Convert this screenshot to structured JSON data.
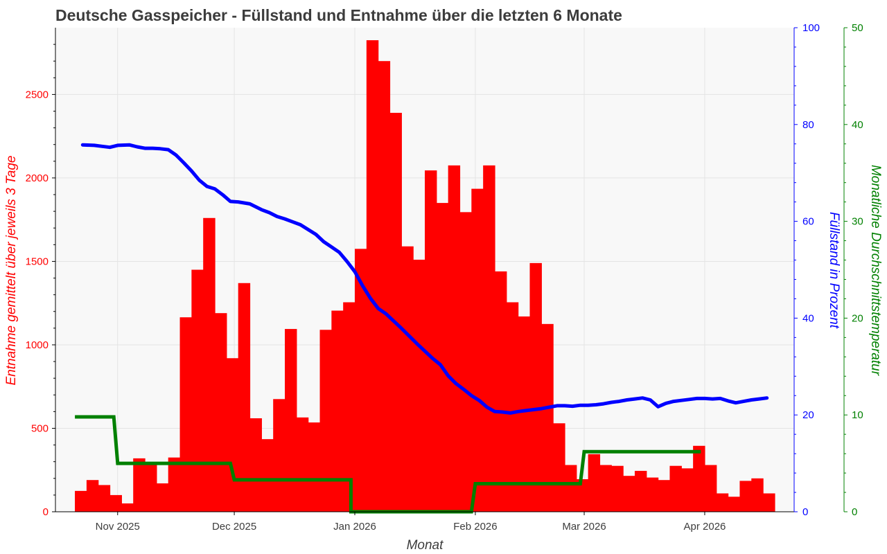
{
  "chart_data": {
    "type": "bar",
    "title": "Deutsche Gasspeicher - Füllstand und Entnahme über die letzten 6 Monate",
    "xlabel": "Monat",
    "x_ticks": [
      "Nov 2025",
      "Dec 2025",
      "Jan 2026",
      "Feb 2026",
      "Mar 2026",
      "Apr 2026"
    ],
    "grid": true,
    "legend": "none",
    "colors": {
      "withdrawal": "#ff0000",
      "fill_level": "#0000ff",
      "temperature": "#008000",
      "title": "#3c3c3c",
      "plot_background": "#f8f8f8",
      "grid": "#e4e4e4"
    },
    "axes": {
      "left": {
        "label": "Entnahme gemittelt über jeweils 3 Tage",
        "ylim": [
          0,
          2900
        ],
        "ticks": [
          0,
          500,
          1000,
          1500,
          2000,
          2500
        ]
      },
      "right1": {
        "label": "Füllstand in Prozent",
        "ylim": [
          0,
          100
        ],
        "ticks": [
          0,
          20,
          40,
          60,
          80,
          100
        ]
      },
      "right2": {
        "label": "Monatliche Durchschnittstemperatur",
        "ylim": [
          0,
          50
        ],
        "ticks": [
          0,
          10,
          20,
          30,
          40,
          50
        ]
      }
    },
    "series": [
      {
        "key": "withdrawal",
        "type": "bar",
        "axis": "left",
        "x_start": [
          "2025-10-21",
          "2025-10-24",
          "2025-10-27",
          "2025-10-30",
          "2025-11-02",
          "2025-11-05",
          "2025-11-08",
          "2025-11-11",
          "2025-11-14",
          "2025-11-17",
          "2025-11-20",
          "2025-11-23",
          "2025-11-26",
          "2025-11-29",
          "2025-12-02",
          "2025-12-05",
          "2025-12-08",
          "2025-12-11",
          "2025-12-14",
          "2025-12-17",
          "2025-12-20",
          "2025-12-23",
          "2025-12-26",
          "2025-12-29",
          "2026-01-01",
          "2026-01-04",
          "2026-01-07",
          "2026-01-10",
          "2026-01-13",
          "2026-01-16",
          "2026-01-19",
          "2026-01-22",
          "2026-01-25",
          "2026-01-28",
          "2026-01-31",
          "2026-02-03",
          "2026-02-06",
          "2026-02-09",
          "2026-02-12",
          "2026-02-15",
          "2026-02-18",
          "2026-02-21",
          "2026-02-24",
          "2026-02-27",
          "2026-03-02",
          "2026-03-05",
          "2026-03-08",
          "2026-03-11",
          "2026-03-14",
          "2026-03-17",
          "2026-03-20",
          "2026-03-23",
          "2026-03-26",
          "2026-03-29",
          "2026-04-01",
          "2026-04-04",
          "2026-04-07",
          "2026-04-10",
          "2026-04-13",
          "2026-04-16"
        ],
        "values": [
          125,
          190,
          160,
          100,
          50,
          320,
          290,
          170,
          325,
          1165,
          1450,
          1760,
          1190,
          920,
          1370,
          560,
          435,
          675,
          1095,
          565,
          535,
          1090,
          1205,
          1255,
          1575,
          2825,
          2700,
          2390,
          1590,
          1510,
          2045,
          1850,
          2075,
          1795,
          1935,
          2075,
          1440,
          1255,
          1170,
          1490,
          1125,
          530,
          280,
          195,
          345,
          280,
          275,
          215,
          245,
          205,
          190,
          275,
          260,
          395,
          280,
          110,
          90,
          185,
          200,
          110
        ]
      },
      {
        "key": "fill_level",
        "type": "line",
        "axis": "right1",
        "x": [
          "2025-10-23",
          "2025-10-26",
          "2025-10-28",
          "2025-10-30",
          "2025-11-01",
          "2025-11-04",
          "2025-11-06",
          "2025-11-08",
          "2025-11-10",
          "2025-11-12",
          "2025-11-14",
          "2025-11-16",
          "2025-11-18",
          "2025-11-20",
          "2025-11-22",
          "2025-11-24",
          "2025-11-26",
          "2025-11-28",
          "2025-11-30",
          "2025-12-02",
          "2025-12-05",
          "2025-12-08",
          "2025-12-10",
          "2025-12-12",
          "2025-12-14",
          "2025-12-16",
          "2025-12-18",
          "2025-12-20",
          "2025-12-22",
          "2025-12-24",
          "2025-12-26",
          "2025-12-28",
          "2025-12-30",
          "2026-01-01",
          "2026-01-03",
          "2026-01-05",
          "2026-01-07",
          "2026-01-09",
          "2026-01-11",
          "2026-01-13",
          "2026-01-15",
          "2026-01-17",
          "2026-01-19",
          "2026-01-21",
          "2026-01-23",
          "2026-01-25",
          "2026-01-27",
          "2026-01-29",
          "2026-01-31",
          "2026-02-02",
          "2026-02-04",
          "2026-02-06",
          "2026-02-08",
          "2026-02-10",
          "2026-02-12",
          "2026-02-14",
          "2026-02-16",
          "2026-02-18",
          "2026-02-20",
          "2026-02-22",
          "2026-02-24",
          "2026-02-26",
          "2026-02-28",
          "2026-03-02",
          "2026-03-04",
          "2026-03-06",
          "2026-03-08",
          "2026-03-10",
          "2026-03-12",
          "2026-03-14",
          "2026-03-16",
          "2026-03-18",
          "2026-03-20",
          "2026-03-22",
          "2026-03-24",
          "2026-03-26",
          "2026-03-28",
          "2026-03-30",
          "2026-04-01",
          "2026-04-03",
          "2026-04-05",
          "2026-04-07",
          "2026-04-09",
          "2026-04-11",
          "2026-04-13",
          "2026-04-15",
          "2026-04-17"
        ],
        "values": [
          75.8,
          75.7,
          75.5,
          75.3,
          75.7,
          75.8,
          75.4,
          75.1,
          75.1,
          75.0,
          74.8,
          73.7,
          72.1,
          70.4,
          68.5,
          67.2,
          66.7,
          65.5,
          64.1,
          64.0,
          63.6,
          62.4,
          61.8,
          61.0,
          60.5,
          59.9,
          59.3,
          58.3,
          57.3,
          55.8,
          54.7,
          53.6,
          51.7,
          49.6,
          46.7,
          44.1,
          42.0,
          40.9,
          39.4,
          37.9,
          36.3,
          34.7,
          33.2,
          31.7,
          30.4,
          28.1,
          26.5,
          25.3,
          24.0,
          23.0,
          21.6,
          20.7,
          20.6,
          20.4,
          20.7,
          20.9,
          21.1,
          21.3,
          21.6,
          21.9,
          21.9,
          21.8,
          22.0,
          22.0,
          22.1,
          22.3,
          22.6,
          22.8,
          23.1,
          23.3,
          23.5,
          23.1,
          21.7,
          22.4,
          22.8,
          23.0,
          23.2,
          23.4,
          23.4,
          23.3,
          23.4,
          22.9,
          22.5,
          22.8,
          23.1,
          23.3,
          23.5
        ]
      },
      {
        "key": "temperature",
        "type": "step",
        "axis": "right2",
        "x": [
          "2025-10-21",
          "2025-10-31",
          "2025-11-01",
          "2025-11-30",
          "2025-12-01",
          "2025-12-31",
          "2025-12-31",
          "2026-01-31",
          "2026-02-01",
          "2026-02-28",
          "2026-03-01",
          "2026-03-31"
        ],
        "values": [
          9.8,
          9.8,
          5.0,
          5.0,
          3.3,
          3.3,
          0,
          0,
          2.9,
          2.9,
          6.2,
          6.2
        ]
      }
    ]
  }
}
